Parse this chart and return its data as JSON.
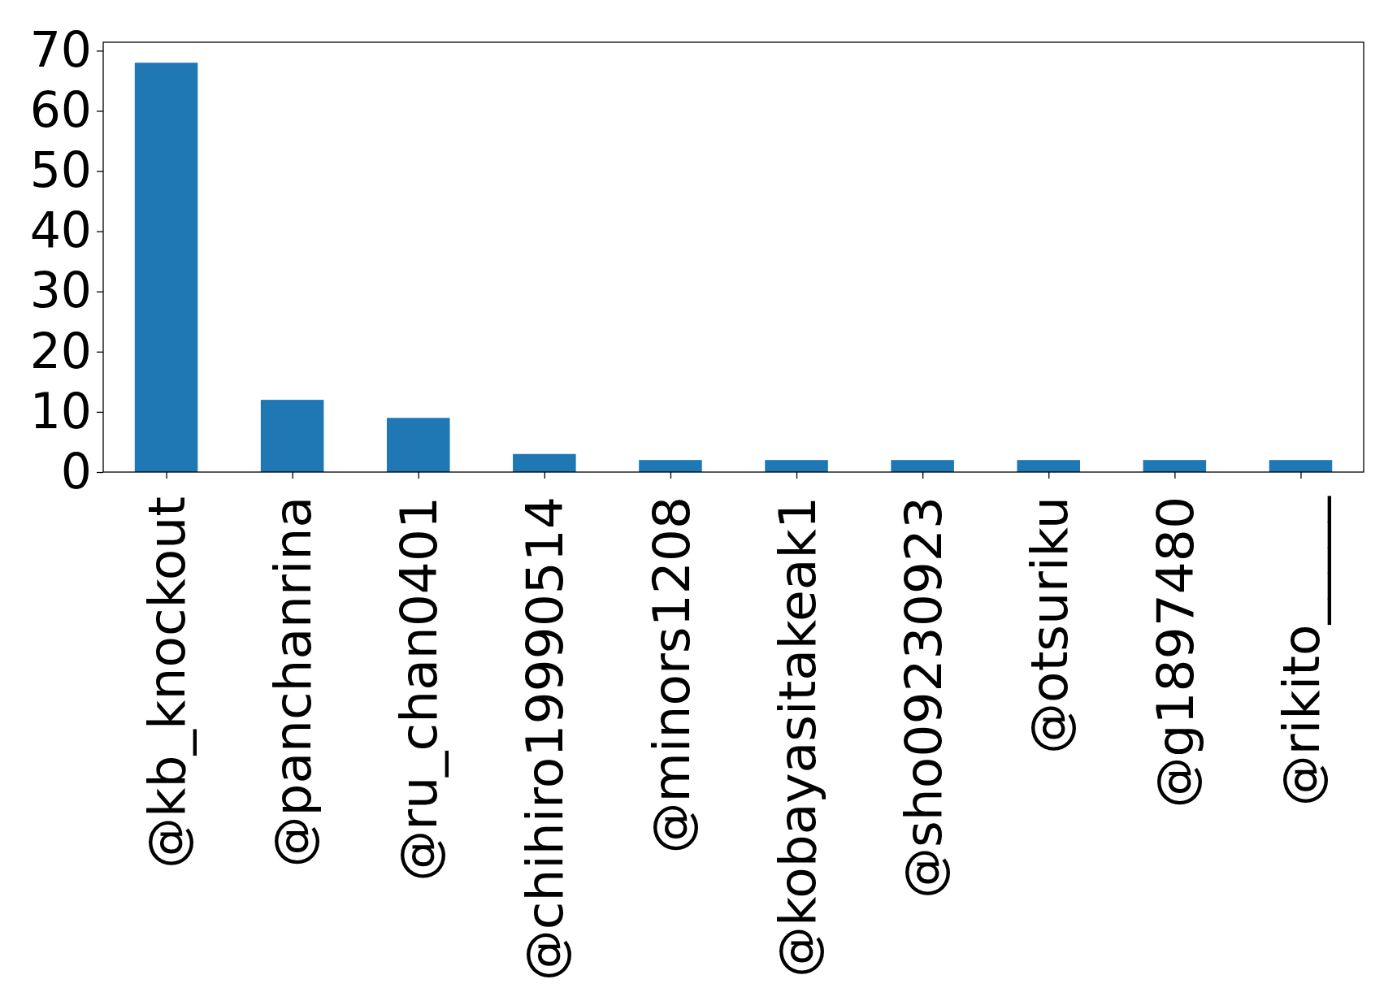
{
  "chart_data": {
    "type": "bar",
    "categories": [
      "@kb_knockout",
      "@panchanrina",
      "@ru_chan0401",
      "@chihiro19990514",
      "@minors1208",
      "@kobayasitakeak1",
      "@sho09230923",
      "@otsuriku",
      "@g1897480",
      "@rikito_____"
    ],
    "values": [
      68,
      12,
      9,
      3,
      2,
      2,
      2,
      2,
      2,
      2
    ],
    "color": "#1f77b4",
    "ylim": [
      0,
      71.4
    ],
    "yticks": [
      0,
      10,
      20,
      30,
      40,
      50,
      60,
      70
    ],
    "grid": false
  }
}
